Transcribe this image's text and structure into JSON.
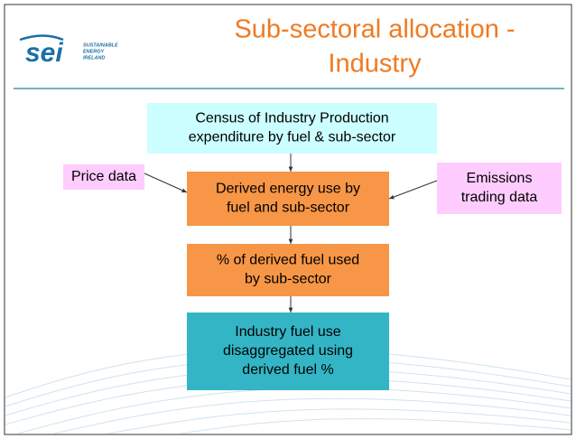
{
  "header": {
    "logo": "sei",
    "logo_subtitle": [
      "SUSTAINABLE",
      "ENERGY",
      "IRELAND"
    ],
    "title": [
      "Sub-sectoral allocation -",
      "Industry"
    ]
  },
  "nodes": [
    {
      "label": [
        "Census of Industry Production",
        "expenditure by fuel & sub-sector"
      ]
    },
    {
      "label": [
        "Price data"
      ]
    },
    {
      "label": [
        "Emissions",
        "trading data"
      ]
    },
    {
      "label": [
        "Derived energy use by",
        "fuel and sub-sector"
      ]
    },
    {
      "label": [
        "% of derived fuel used",
        "by sub-sector"
      ]
    },
    {
      "label": [
        "Industry fuel use",
        "disaggregated using",
        "derived fuel %"
      ]
    }
  ]
}
